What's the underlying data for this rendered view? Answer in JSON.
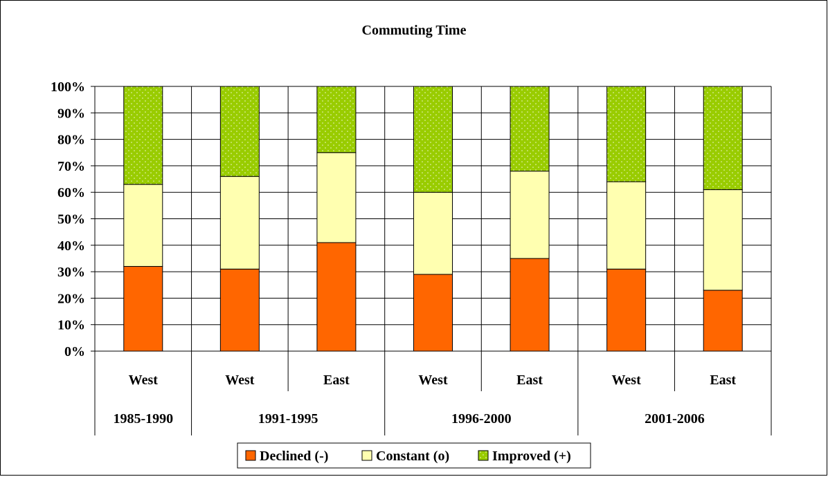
{
  "colors": {
    "declined": "#FF6600",
    "constant": "#FFFFB0",
    "improved": "#99CC00",
    "improved_dots": "#F0F8D0"
  },
  "chart_data": {
    "type": "bar",
    "stacked": true,
    "percent": true,
    "title": "Commuting Time",
    "xlabel": "",
    "ylabel": "",
    "ylim": [
      0,
      100
    ],
    "yticks": [
      "0%",
      "10%",
      "20%",
      "30%",
      "40%",
      "50%",
      "60%",
      "70%",
      "80%",
      "90%",
      "100%"
    ],
    "categories": [
      "West",
      "West",
      "East",
      "West",
      "East",
      "West",
      "East"
    ],
    "groups": [
      {
        "label": "1985-1990",
        "span": 1
      },
      {
        "label": "1991-1995",
        "span": 2
      },
      {
        "label": "1996-2000",
        "span": 2
      },
      {
        "label": "2001-2006",
        "span": 2
      }
    ],
    "series": [
      {
        "name": "Declined (-)",
        "values": [
          32,
          31,
          41,
          29,
          35,
          31,
          23
        ]
      },
      {
        "name": "Constant (o)",
        "values": [
          31,
          35,
          34,
          31,
          33,
          33,
          38
        ]
      },
      {
        "name": "Improved (+)",
        "values": [
          37,
          34,
          25,
          40,
          32,
          36,
          39
        ]
      }
    ],
    "grid": true,
    "legend": "bottom"
  }
}
